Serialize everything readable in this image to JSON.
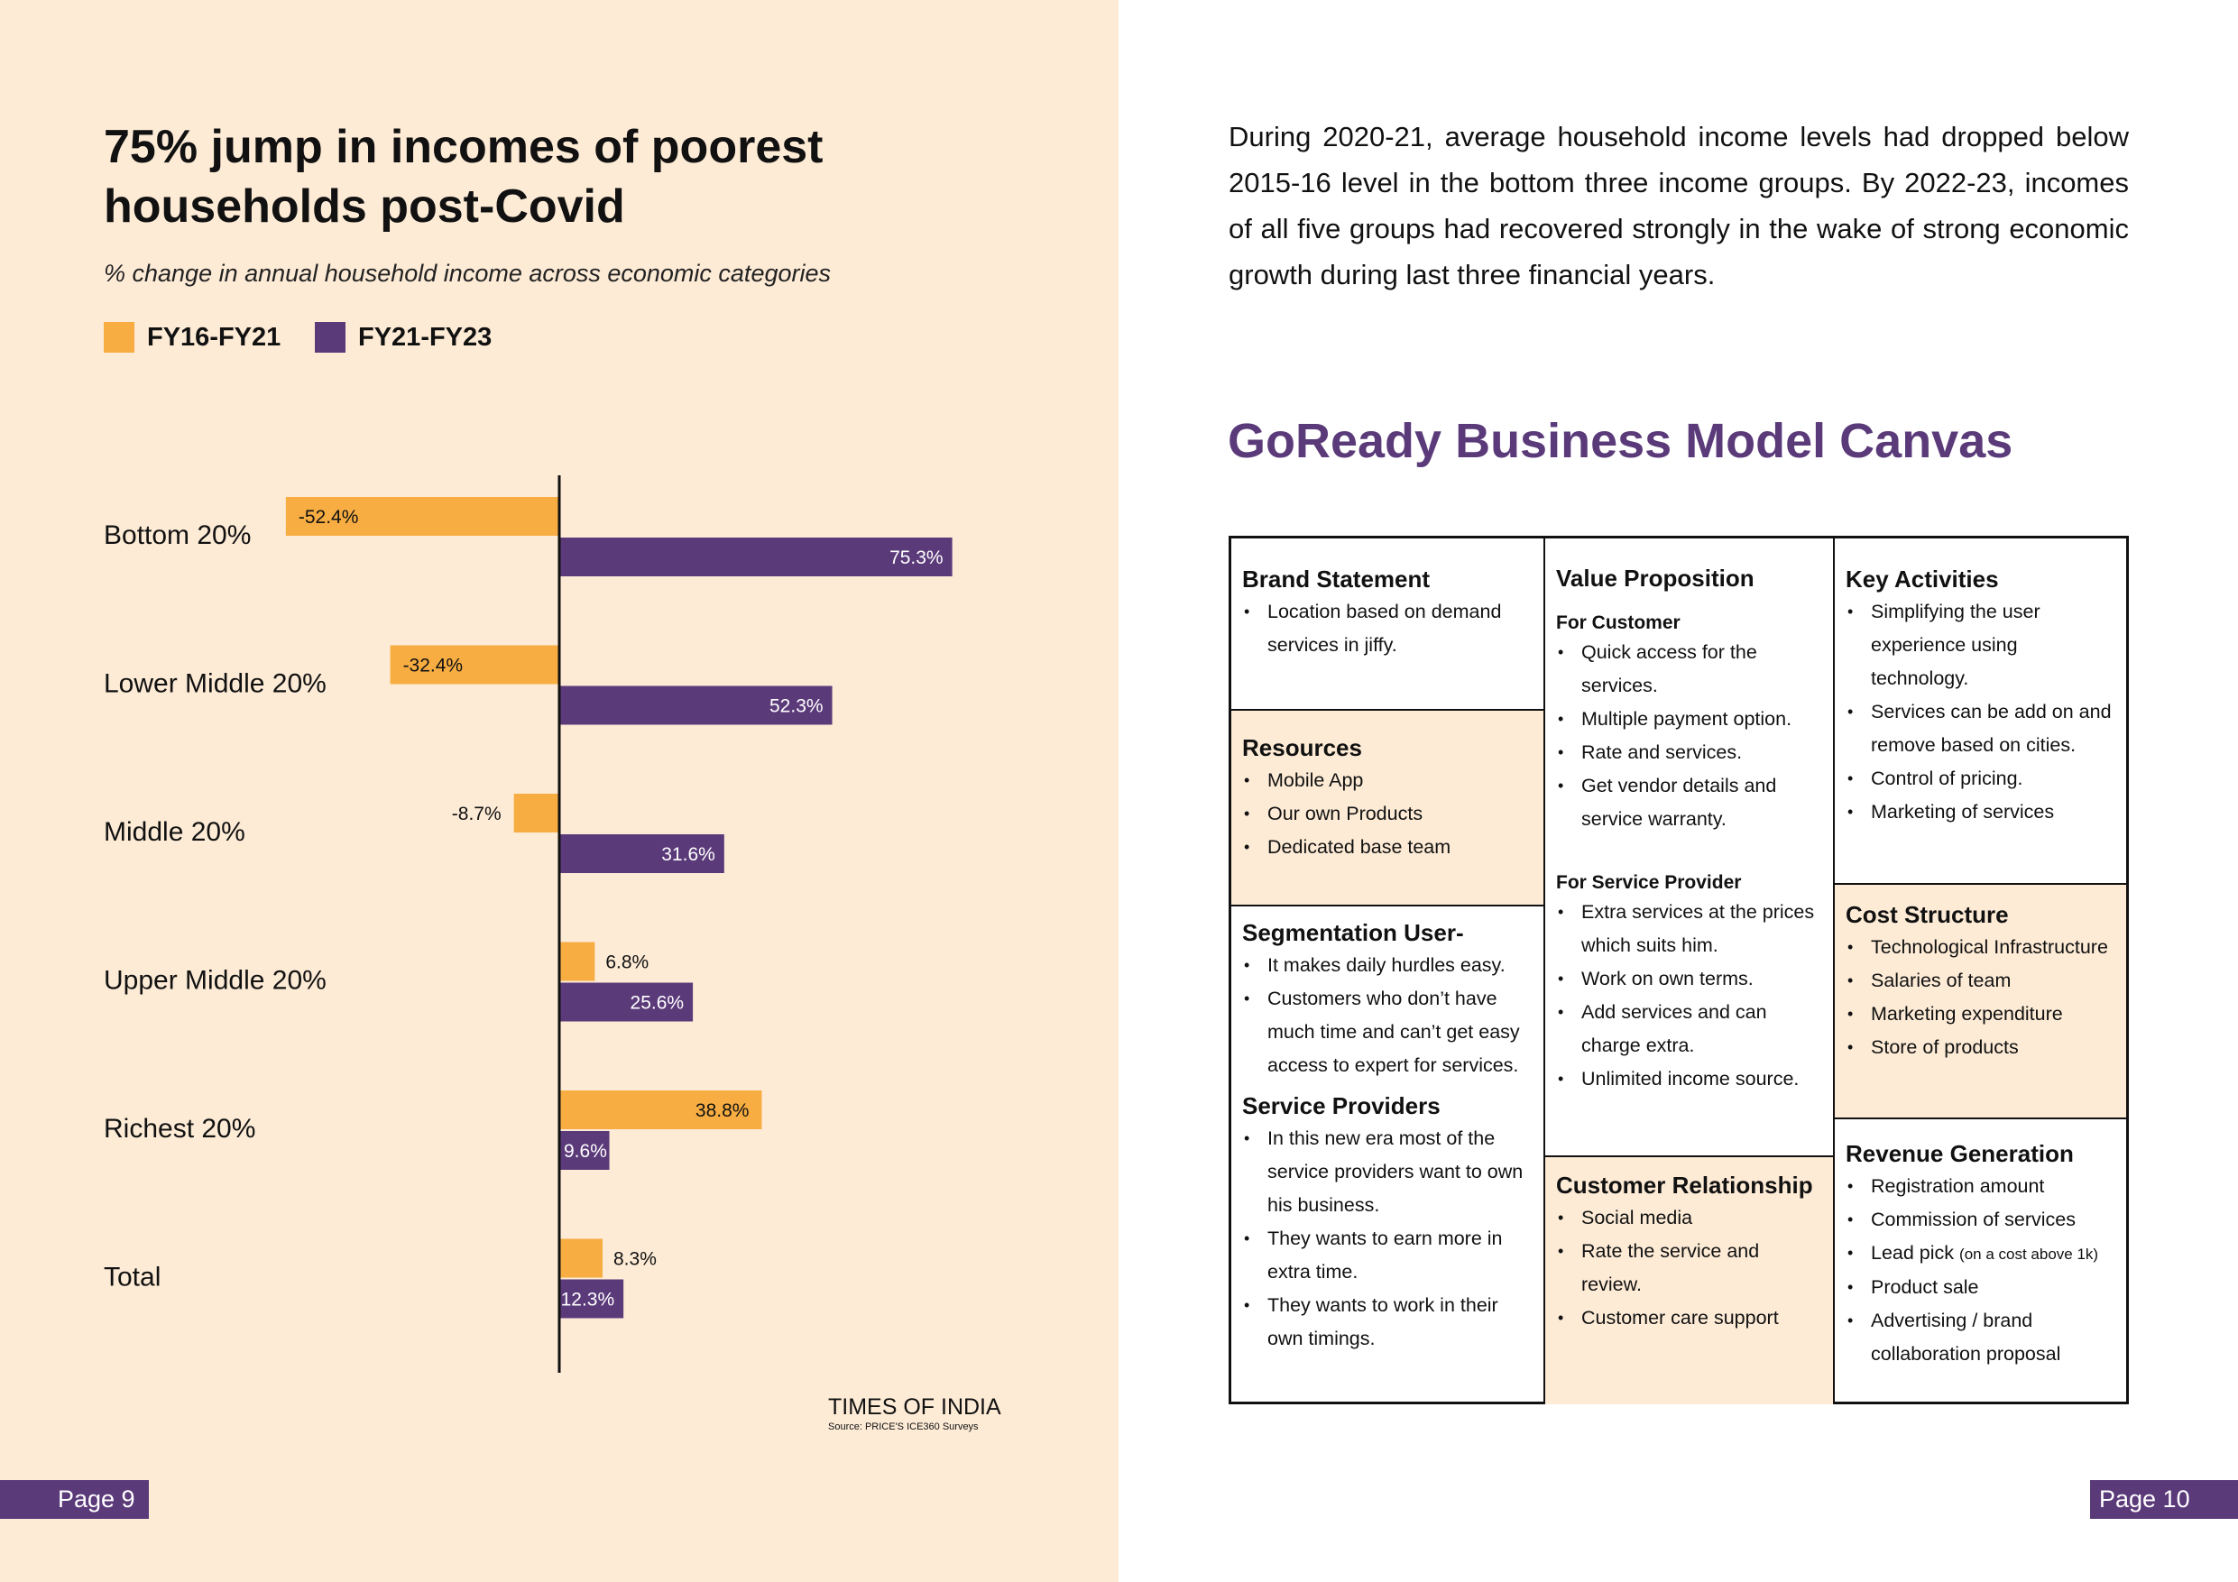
{
  "left_page": {
    "title_line1": "75% jump in incomes of poorest",
    "title_line2": "households post-Covid",
    "subtitle": "% change in annual household income across economic categories",
    "source": "TIMES OF INDIA",
    "source_note": "Source: PRICE'S ICE360 Surveys",
    "page_label": "Page 9"
  },
  "colors": {
    "fy16_21": "#f7ad42",
    "fy21_23": "#5b3a7a",
    "canvas_shade": "#fdebd6"
  },
  "chart_data": {
    "type": "bar",
    "orientation": "horizontal",
    "title": "75% jump in incomes of poorest households post-Covid",
    "subtitle": "% change in annual household income across economic categories",
    "categories": [
      "Bottom 20%",
      "Lower Middle 20%",
      "Middle 20%",
      "Upper Middle 20%",
      "Richest 20%",
      "Total"
    ],
    "series": [
      {
        "name": "FY16-FY21",
        "values": [
          -52.4,
          -32.4,
          -8.7,
          6.8,
          38.8,
          8.3
        ],
        "labels": [
          "-52.4%",
          "-32.4%",
          "-8.7%",
          "6.8%",
          "38.8%",
          "8.3%"
        ]
      },
      {
        "name": "FY21-FY23",
        "values": [
          75.3,
          52.3,
          31.6,
          25.6,
          9.6,
          12.3
        ],
        "labels": [
          "75.3%",
          "52.3%",
          "31.6%",
          "25.6%",
          "9.6%",
          "12.3%"
        ]
      }
    ],
    "xlabel": "",
    "ylabel": "",
    "legend": "top-left",
    "grid": false
  },
  "right_page": {
    "intro": "During 2020-21, average household income levels had dropped below 2015-16 level in the bottom three income groups. By 2022-23, incomes of all five groups had recovered strongly in the wake of strong economic growth during last three financial years.",
    "canvas_title": "GoReady Business Model Canvas",
    "page_label": "Page 10"
  },
  "canvas": {
    "brand": {
      "title": "Brand Statement",
      "items": [
        "Location based on demand services in jiffy."
      ]
    },
    "resources": {
      "title": "Resources",
      "items": [
        "Mobile App",
        "Our own Products",
        "Dedicated base team"
      ]
    },
    "segmentation": {
      "title": "Segmentation User-",
      "items": [
        "It makes daily hurdles easy.",
        "Customers who don’t have much time and can’t get easy access to expert for services."
      ]
    },
    "providers": {
      "title": "Service Providers",
      "items": [
        "In this new era most of the service providers want to own his business.",
        "They wants to earn more in extra time.",
        "They wants to work in their own timings."
      ]
    },
    "value": {
      "title": "Value Proposition",
      "customer_heading": "For Customer",
      "customer_items": [
        "Quick access for the services.",
        "Multiple payment option.",
        "Rate and services.",
        "Get vendor details and service warranty."
      ],
      "provider_heading": "For Service Provider",
      "provider_items": [
        "Extra services at the prices which suits him.",
        "Work on own terms.",
        "Add services and can charge extra.",
        "Unlimited income source."
      ]
    },
    "relationship": {
      "title": "Customer Relationship",
      "items": [
        "Social media",
        "Rate the service and review.",
        "Customer care support"
      ]
    },
    "activities": {
      "title": "Key Activities",
      "items": [
        "Simplifying the user experience using technology.",
        "Services can be add on and remove based on cities.",
        "Control of pricing.",
        "Marketing of services"
      ]
    },
    "cost": {
      "title": "Cost Structure",
      "items": [
        "Technological Infrastructure",
        "Salaries of team",
        "Marketing expenditure",
        "Store of products"
      ]
    },
    "revenue": {
      "title": "Revenue Generation",
      "items": [
        "Registration amount",
        "Commission of services",
        "Lead pick",
        "Product sale",
        "Advertising / brand collaboration proposal"
      ],
      "lead_note": "(on a cost above 1k)"
    }
  }
}
